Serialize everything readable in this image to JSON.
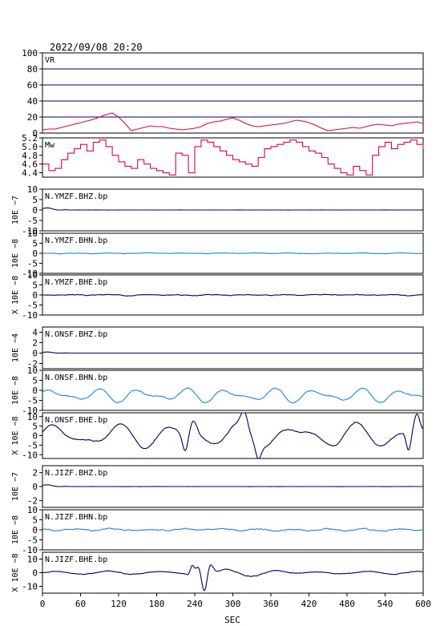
{
  "header": {
    "datetime": "2022/09/08  20:20"
  },
  "colors": {
    "vr_mw": "#e0004f",
    "dark_trace": "#000066",
    "light_trace": "#1f86d6",
    "axis": "#000000"
  },
  "chart_data": [
    {
      "type": "line",
      "label": "VR",
      "ylim": [
        0,
        100
      ],
      "yticks": [
        0,
        20,
        40,
        60,
        80,
        100
      ],
      "grid": true,
      "color": "#e0004f",
      "x": [
        0,
        10,
        20,
        30,
        40,
        50,
        60,
        70,
        80,
        90,
        100,
        110,
        120,
        130,
        140,
        150,
        160,
        170,
        180,
        190,
        200,
        210,
        220,
        230,
        240,
        250,
        260,
        270,
        280,
        290,
        300,
        310,
        320,
        330,
        340,
        350,
        360,
        370,
        380,
        390,
        400,
        410,
        420,
        430,
        440,
        450,
        460,
        470,
        480,
        490,
        500,
        510,
        520,
        530,
        540,
        550,
        560,
        570,
        580,
        590,
        600
      ],
      "y": [
        4,
        5,
        5,
        7,
        9,
        11,
        13,
        15,
        17,
        20,
        23,
        25,
        20,
        12,
        3,
        5,
        7,
        9,
        8,
        8,
        6,
        5,
        4,
        5,
        6,
        8,
        12,
        14,
        15,
        17,
        19,
        16,
        12,
        9,
        8,
        9,
        10,
        11,
        12,
        14,
        16,
        15,
        13,
        10,
        6,
        3,
        4,
        5,
        6,
        7,
        6,
        8,
        10,
        11,
        10,
        9,
        11,
        12,
        13,
        14,
        12
      ]
    },
    {
      "type": "line",
      "label": "Mw",
      "ylim": [
        4.3,
        5.2
      ],
      "yticks": [
        4.4,
        4.6,
        4.8,
        5.0,
        5.2
      ],
      "grid": false,
      "color": "#e0004f",
      "x": [
        0,
        10,
        20,
        30,
        40,
        50,
        60,
        70,
        80,
        90,
        100,
        110,
        120,
        130,
        140,
        150,
        160,
        170,
        180,
        190,
        200,
        210,
        220,
        230,
        240,
        250,
        260,
        270,
        280,
        290,
        300,
        310,
        320,
        330,
        340,
        350,
        360,
        370,
        380,
        390,
        400,
        410,
        420,
        430,
        440,
        450,
        460,
        470,
        480,
        490,
        500,
        510,
        520,
        530,
        540,
        550,
        560,
        570,
        580,
        590,
        600
      ],
      "y": [
        4.6,
        4.45,
        4.5,
        4.7,
        4.85,
        4.95,
        5.05,
        4.9,
        5.1,
        5.15,
        5.0,
        4.8,
        4.65,
        4.55,
        4.5,
        4.7,
        4.6,
        4.5,
        4.45,
        4.4,
        4.35,
        4.85,
        4.8,
        4.4,
        5.0,
        5.15,
        5.1,
        5.0,
        4.9,
        4.8,
        4.7,
        4.65,
        4.6,
        4.55,
        4.75,
        4.95,
        5.0,
        5.05,
        5.1,
        5.15,
        5.1,
        5.0,
        4.9,
        4.85,
        4.75,
        4.6,
        4.5,
        4.4,
        4.35,
        4.55,
        4.45,
        4.35,
        4.8,
        5.0,
        5.1,
        4.95,
        5.05,
        5.1,
        5.15,
        5.05,
        4.95
      ]
    },
    {
      "type": "line",
      "station": "N.YMZF.BHZ.bp",
      "ylabel": "10E −7",
      "ylim": [
        -10,
        10
      ],
      "yticks": [
        -10,
        -5,
        0,
        5,
        10
      ],
      "color": "#000066",
      "amp": 1.2,
      "profile": "first",
      "seed": 1
    },
    {
      "type": "line",
      "station": "N.YMZF.BHN.bp",
      "ylabel": "10E −8",
      "ylim": [
        -10,
        10
      ],
      "yticks": [
        -10,
        -5,
        0,
        5,
        10
      ],
      "color": "#1f86d6",
      "amp": 0.5,
      "profile": "flat",
      "seed": 2
    },
    {
      "type": "line",
      "station": "N.YMZF.BHE.bp",
      "ylabel": "X 10E −8",
      "ylim": [
        -10,
        10
      ],
      "yticks": [
        -10,
        -5,
        0,
        5,
        10
      ],
      "color": "#000066",
      "amp": 0.7,
      "profile": "flat",
      "seed": 3
    },
    {
      "type": "line",
      "station": "N.ONSF.BHZ.bp",
      "ylabel": "10E −4",
      "ylim": [
        -3,
        5
      ],
      "yticks": [
        -2,
        0,
        2,
        4
      ],
      "color": "#000066",
      "amp": 0.25,
      "profile": "first",
      "seed": 4
    },
    {
      "type": "line",
      "station": "N.ONSF.BHN.bp",
      "ylabel": "10E −8",
      "ylim": [
        -10,
        10
      ],
      "yticks": [
        -10,
        -5,
        0,
        5,
        10
      ],
      "color": "#1f86d6",
      "amp": 4.2,
      "profile": "osc",
      "seed": 5
    },
    {
      "type": "line",
      "station": "N.ONSF.BHE.bp",
      "ylabel": "X 10E −8",
      "ylim": [
        -12,
        12
      ],
      "yticks": [
        -10,
        -5,
        0,
        5,
        10
      ],
      "color": "#000066",
      "amp": 10,
      "profile": "big",
      "seed": 6
    },
    {
      "type": "line",
      "station": "N.JIZF.BHZ.bp",
      "ylabel": "10E −7",
      "ylim": [
        -3,
        3
      ],
      "yticks": [
        -2,
        0,
        2
      ],
      "color": "#000066",
      "amp": 0.3,
      "profile": "first",
      "seed": 7
    },
    {
      "type": "line",
      "station": "N.JIZF.BHN.bp",
      "ylabel": "10E −8",
      "ylim": [
        -10,
        10
      ],
      "yticks": [
        -10,
        -5,
        0,
        5,
        10
      ],
      "color": "#1f86d6",
      "amp": 1.2,
      "profile": "flat",
      "seed": 8
    },
    {
      "type": "line",
      "station": "N.JIZF.BHE.bp",
      "ylabel": "X 10E −8",
      "ylim": [
        -15,
        15
      ],
      "yticks": [
        -10,
        0,
        10
      ],
      "color": "#000066",
      "amp": 4,
      "profile": "event",
      "seed": 9
    }
  ],
  "xaxis": {
    "label": "SEC",
    "xlim": [
      0,
      600
    ],
    "ticks": [
      0,
      60,
      120,
      180,
      240,
      300,
      360,
      420,
      480,
      540,
      600
    ]
  }
}
